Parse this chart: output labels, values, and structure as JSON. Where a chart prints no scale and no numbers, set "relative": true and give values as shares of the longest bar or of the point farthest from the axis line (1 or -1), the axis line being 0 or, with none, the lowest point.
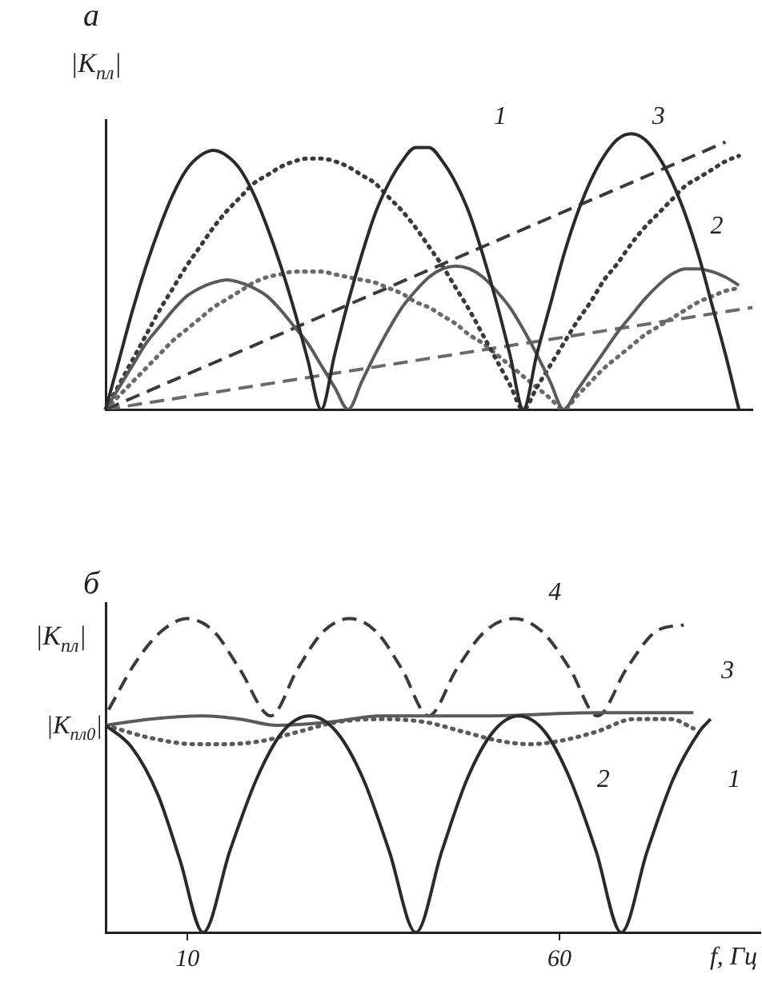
{
  "chart_data": [
    {
      "type": "line",
      "title": "а",
      "ylabel": "|K$_{пл}$|",
      "relative": true,
      "marker": "none",
      "categories": [
        null,
        null,
        null,
        null,
        null,
        null,
        null,
        null,
        null,
        null,
        null,
        null,
        null,
        null,
        null,
        null,
        null,
        null,
        null,
        null,
        null,
        null,
        null,
        null,
        null,
        null,
        null,
        null,
        null,
        null,
        null,
        null,
        null,
        null,
        null,
        null,
        null,
        null,
        null,
        null,
        null,
        null,
        null,
        null,
        null,
        null,
        null,
        null,
        null
      ],
      "series": [
        {
          "color": "#2a2a2a",
          "line_style": "solid",
          "values": [
            0,
            0.18,
            0.36,
            0.52,
            0.66,
            0.78,
            0.87,
            0.92,
            0.94,
            0.92,
            0.87,
            0.78,
            0.66,
            0.52,
            0.36,
            0.18,
            0,
            0.2,
            0.39,
            0.56,
            0.71,
            0.82,
            0.9,
            0.95,
            0.95,
            0.9,
            0.82,
            0.71,
            0.56,
            0.39,
            0.2,
            0,
            0.2,
            0.38,
            0.56,
            0.71,
            0.83,
            0.92,
            0.98,
            1,
            0.98,
            0.92,
            0.83,
            0.71,
            0.56,
            0.38,
            0.2,
            0,
            null
          ]
        },
        {
          "color": "#5a5a5a",
          "line_style": "solid",
          "values": [
            0,
            0.08,
            0.16,
            0.24,
            0.3,
            0.36,
            0.41,
            0.44,
            0.46,
            0.47,
            0.46,
            0.44,
            0.41,
            0.36,
            0.3,
            0.24,
            0.16,
            0.08,
            0,
            0.1,
            0.2,
            0.29,
            0.37,
            0.43,
            0.48,
            0.51,
            0.52,
            0.51,
            0.48,
            0.43,
            0.37,
            0.29,
            0.2,
            0.1,
            0,
            0.07,
            0.14,
            0.21,
            0.28,
            0.34,
            0.4,
            0.45,
            0.49,
            0.51,
            0.51,
            0.5,
            0.48,
            0.45,
            null
          ]
        },
        {
          "color": "#3a3a3a",
          "line_style": "dotted",
          "values": [
            0,
            0.09,
            0.18,
            0.27,
            0.36,
            0.44,
            0.52,
            0.59,
            0.66,
            0.72,
            0.77,
            0.82,
            0.85,
            0.88,
            0.9,
            0.91,
            0.91,
            0.9,
            0.88,
            0.85,
            0.82,
            0.77,
            0.72,
            0.66,
            0.59,
            0.52,
            0.44,
            0.36,
            0.27,
            0.18,
            0.09,
            0,
            0.08,
            0.16,
            0.24,
            0.32,
            0.39,
            0.47,
            0.53,
            0.6,
            0.66,
            0.71,
            0.76,
            0.81,
            0.84,
            0.87,
            0.9,
            0.92,
            null
          ]
        },
        {
          "color": "#6a6a6a",
          "line_style": "dotted",
          "values": [
            0,
            0.05,
            0.1,
            0.15,
            0.2,
            0.25,
            0.29,
            0.33,
            0.37,
            0.4,
            0.43,
            0.46,
            0.48,
            0.49,
            0.5,
            0.5,
            0.5,
            0.49,
            0.48,
            0.47,
            0.46,
            0.44,
            0.42,
            0.39,
            0.37,
            0.34,
            0.31,
            0.27,
            0.24,
            0.2,
            0.16,
            0.12,
            0.08,
            0.04,
            0,
            0.05,
            0.1,
            0.15,
            0.19,
            0.23,
            0.27,
            0.3,
            0.33,
            0.36,
            0.39,
            0.41,
            0.43,
            0.44,
            null
          ]
        },
        {
          "color": "#3a3a3a",
          "line_style": "dashed",
          "values": [
            0,
            null,
            null,
            null,
            null,
            null,
            null,
            null,
            null,
            null,
            null,
            null,
            null,
            null,
            null,
            null,
            null,
            null,
            null,
            null,
            null,
            null,
            null,
            null,
            null,
            null,
            null,
            null,
            null,
            null,
            null,
            null,
            null,
            null,
            null,
            null,
            null,
            null,
            null,
            null,
            null,
            null,
            null,
            null,
            null,
            null,
            0.97,
            null,
            null
          ]
        },
        {
          "color": "#6a6a6a",
          "line_style": "dashed",
          "values": [
            0,
            null,
            null,
            null,
            null,
            null,
            null,
            null,
            null,
            null,
            null,
            null,
            null,
            null,
            null,
            null,
            null,
            null,
            null,
            null,
            null,
            null,
            null,
            null,
            null,
            null,
            null,
            null,
            null,
            null,
            null,
            null,
            null,
            null,
            null,
            null,
            null,
            null,
            null,
            null,
            null,
            null,
            null,
            null,
            null,
            null,
            null,
            null,
            0.37
          ]
        }
      ],
      "annotations": [
        "1",
        "3",
        "2"
      ]
    },
    {
      "type": "line",
      "title": "б",
      "ylabel": "|K$_{пл}$|",
      "xlabel": "f, Гц",
      "relative": true,
      "marker": "none",
      "xlim": [
        -1,
        87
      ],
      "xticks": [
        10,
        60
      ],
      "series": [
        {
          "color": "#2a2a2a",
          "line_style": "solid",
          "x": [
            -1,
            2.5,
            6,
            9,
            12.1,
            15.7,
            19.3,
            22.8,
            26.4,
            30,
            33.6,
            37.1,
            40.7,
            44.2,
            47.6,
            51.1,
            54.5,
            58,
            61.4,
            64.9,
            68.3,
            71.8,
            75.3,
            78.8,
            80.3
          ],
          "values": [
            0.66,
            0.59,
            0.44,
            0.23,
            0,
            0.26,
            0.49,
            0.64,
            0.69,
            0.64,
            0.49,
            0.26,
            0,
            0.26,
            0.49,
            0.64,
            0.69,
            0.64,
            0.49,
            0.26,
            0,
            0.26,
            0.49,
            0.64,
            0.68
          ]
        },
        {
          "color": "#5a5a5a",
          "line_style": "solid",
          "x": [
            -1,
            5,
            12,
            17,
            22,
            29,
            36,
            50,
            65,
            78
          ],
          "values": [
            0.66,
            0.68,
            0.69,
            0.68,
            0.66,
            0.67,
            0.69,
            0.69,
            0.7,
            0.7
          ]
        },
        {
          "color": "#5a5a5a",
          "line_style": "dotted",
          "x": [
            -1,
            5,
            11,
            15,
            20,
            25,
            30,
            36,
            42,
            47,
            52,
            56,
            60,
            65,
            70,
            75,
            78
          ],
          "values": [
            0.66,
            0.62,
            0.6,
            0.6,
            0.61,
            0.64,
            0.67,
            0.68,
            0.67,
            0.64,
            0.61,
            0.6,
            0.61,
            0.64,
            0.68,
            0.68,
            0.65
          ]
        },
        {
          "color": "#3a3a3a",
          "line_style": "dashed",
          "x": [
            -0.6,
            3,
            6.5,
            10,
            13.5,
            17,
            21.2,
            24.8,
            28.3,
            31.8,
            35.3,
            38.8,
            42.4,
            46.2,
            50,
            53.9,
            57.6,
            61.4,
            65.1,
            69,
            73,
            76.7
          ],
          "values": [
            0.71,
            0.86,
            0.96,
            1,
            0.96,
            0.84,
            0.69,
            0.84,
            0.96,
            1,
            0.96,
            0.84,
            0.69,
            0.84,
            0.96,
            1,
            0.96,
            0.84,
            0.69,
            0.84,
            0.96,
            0.98
          ]
        }
      ],
      "annotations": [
        "4",
        "3",
        "2",
        "1",
        {
          "text": "|K$_{пл0}$|",
          "x": -1,
          "y": 0.66
        }
      ]
    }
  ]
}
